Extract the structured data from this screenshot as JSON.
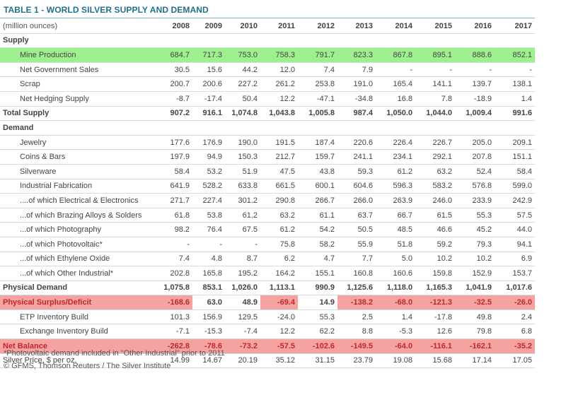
{
  "title": "TABLE 1 - WORLD SILVER SUPPLY AND DEMAND",
  "header": {
    "unit": "(million ounces)",
    "years": [
      "2008",
      "2009",
      "2010",
      "2011",
      "2012",
      "2013",
      "2014",
      "2015",
      "2016",
      "2017"
    ]
  },
  "rows": [
    {
      "label": "Supply",
      "kind": "sec",
      "values": []
    },
    {
      "label": "Mine Production",
      "kind": "sub green",
      "values": [
        "684.7",
        "717.3",
        "753.0",
        "758.3",
        "791.7",
        "823.3",
        "867.8",
        "895.1",
        "888.6",
        "852.1"
      ]
    },
    {
      "label": "Net Government Sales",
      "kind": "sub",
      "values": [
        "30.5",
        "15.6",
        "44.2",
        "12.0",
        "7.4",
        "7.9",
        "-",
        "-",
        "-",
        "-"
      ]
    },
    {
      "label": "Scrap",
      "kind": "sub",
      "values": [
        "200.7",
        "200.6",
        "227.2",
        "261.2",
        "253.8",
        "191.0",
        "165.4",
        "141.1",
        "139.7",
        "138.1"
      ]
    },
    {
      "label": "Net Hedging Supply",
      "kind": "sub",
      "values": [
        "-8.7",
        "-17.4",
        "50.4",
        "12.2",
        "-47.1",
        "-34.8",
        "16.8",
        "7.8",
        "-18.9",
        "1.4"
      ]
    },
    {
      "label": "Total Supply",
      "kind": "bold",
      "values": [
        "907.2",
        "916.1",
        "1,074.8",
        "1,043.8",
        "1,005.8",
        "987.4",
        "1,050.0",
        "1,044.0",
        "1,009.4",
        "991.6"
      ]
    },
    {
      "label": "Demand",
      "kind": "sec",
      "values": []
    },
    {
      "label": "Jewelry",
      "kind": "sub",
      "values": [
        "177.6",
        "176.9",
        "190.0",
        "191.5",
        "187.4",
        "220.6",
        "226.4",
        "226.7",
        "205.0",
        "209.1"
      ]
    },
    {
      "label": "Coins & Bars",
      "kind": "sub",
      "values": [
        "197.9",
        "94.9",
        "150.3",
        "212.7",
        "159.7",
        "241.1",
        "234.1",
        "292.1",
        "207.8",
        "151.1"
      ]
    },
    {
      "label": "Silverware",
      "kind": "sub",
      "values": [
        "58.4",
        "53.2",
        "51.9",
        "47.5",
        "43.8",
        "59.3",
        "61.2",
        "63.2",
        "52.4",
        "58.4"
      ]
    },
    {
      "label": "Industrial Fabrication",
      "kind": "sub",
      "values": [
        "641.9",
        "528.2",
        "633.8",
        "661.5",
        "600.1",
        "604.6",
        "596.3",
        "583.2",
        "576.8",
        "599.0"
      ]
    },
    {
      "label": "....of which Electrical & Electronics",
      "kind": "sub",
      "values": [
        "271.7",
        "227.4",
        "301.2",
        "290.8",
        "266.7",
        "266.0",
        "263.9",
        "246.0",
        "233.9",
        "242.9"
      ]
    },
    {
      "label": "...of which Brazing Alloys & Solders",
      "kind": "sub",
      "values": [
        "61.8",
        "53.8",
        "61.2",
        "63.2",
        "61.1",
        "63.7",
        "66.7",
        "61.5",
        "55.3",
        "57.5"
      ]
    },
    {
      "label": "...of which Photography",
      "kind": "sub",
      "values": [
        "98.2",
        "76.4",
        "67.5",
        "61.2",
        "54.2",
        "50.5",
        "48.5",
        "46.6",
        "45.2",
        "44.0"
      ]
    },
    {
      "label": "...of which Photovoltaic*",
      "kind": "sub",
      "values": [
        "-",
        "-",
        "-",
        "75.8",
        "58.2",
        "55.9",
        "51.8",
        "59.2",
        "79.3",
        "94.1"
      ]
    },
    {
      "label": "...of which Ethylene Oxide",
      "kind": "sub",
      "values": [
        "7.4",
        "4.8",
        "8.7",
        "6.2",
        "4.7",
        "7.7",
        "5.0",
        "10.2",
        "10.2",
        "6.9"
      ]
    },
    {
      "label": "...of which Other Industrial*",
      "kind": "sub",
      "values": [
        "202.8",
        "165.8",
        "195.2",
        "164.2",
        "155.1",
        "160.8",
        "160.6",
        "159.8",
        "152.9",
        "153.7"
      ]
    },
    {
      "label": "Physical Demand",
      "kind": "bold",
      "values": [
        "1,075.8",
        "853.1",
        "1,026.0",
        "1,113.1",
        "990.9",
        "1,125.6",
        "1,118.0",
        "1,165.3",
        "1,041.9",
        "1,017.6"
      ]
    },
    {
      "label": "Physical Surplus/Deficit",
      "kind": "bold red",
      "values": [
        "-168.6",
        "63.0",
        "48.9",
        "-69.4",
        "14.9",
        "-138.2",
        "-68.0",
        "-121.3",
        "-32.5",
        "-26.0"
      ],
      "red_cells": [
        0,
        3,
        5,
        6,
        7,
        8,
        9
      ]
    },
    {
      "label": "ETP Inventory Build",
      "kind": "sub",
      "values": [
        "101.3",
        "156.9",
        "129.5",
        "-24.0",
        "55.3",
        "2.5",
        "1.4",
        "-17.8",
        "49.8",
        "2.4"
      ]
    },
    {
      "label": "Exchange Inventory Build",
      "kind": "sub",
      "values": [
        "-7.1",
        "-15.3",
        "-7.4",
        "12.2",
        "62.2",
        "8.8",
        "-5.3",
        "12.6",
        "79.8",
        "6.8"
      ]
    },
    {
      "label": "Net Balance",
      "kind": "bold red",
      "values": [
        "-262.8",
        "-78.6",
        "-73.2",
        "-57.5",
        "-102.6",
        "-149.5",
        "-64.0",
        "-116.1",
        "-162.1",
        "-35.2"
      ],
      "red_cells": [
        0,
        1,
        2,
        3,
        4,
        5,
        6,
        7,
        8,
        9
      ]
    },
    {
      "label": "Silver Price, $ per oz.",
      "kind": "plain",
      "values": [
        "14.99",
        "14.67",
        "20.19",
        "35.12",
        "31.15",
        "23.79",
        "19.08",
        "15.68",
        "17.14",
        "17.05"
      ]
    }
  ],
  "notes": [
    "*Photovoltaic demand included in \"Other Industrial\" prior to 2011",
    "© GFMS, Thomson Reuters / The Silver Institute"
  ]
}
